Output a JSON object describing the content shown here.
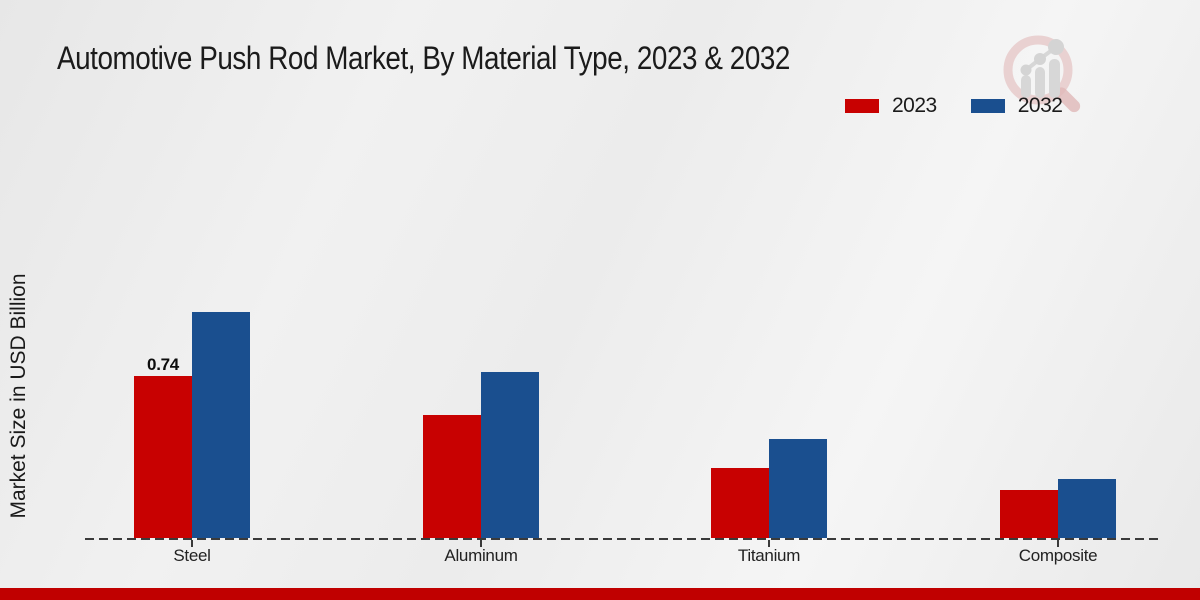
{
  "title": "Automotive Push Rod Market, By Material Type, 2023 & 2032",
  "y_axis_label": "Market Size in USD Billion",
  "colors": {
    "series_2023": "#c80101",
    "series_2032": "#1a4f8f",
    "bottom_band": "#c00000",
    "baseline": "#3a3a3a"
  },
  "legend": {
    "position": "top-right",
    "items": [
      {
        "label": "2023",
        "color": "#c80101"
      },
      {
        "label": "2032",
        "color": "#1a4f8f"
      }
    ]
  },
  "branding": {
    "logo_icon": "magnifier-bar-chart-logo"
  },
  "chart_data": {
    "type": "bar",
    "categories": [
      "Steel",
      "Aluminum",
      "Titanium",
      "Composite"
    ],
    "series": [
      {
        "name": "2023",
        "color": "#c80101",
        "values": [
          0.74,
          0.56,
          0.32,
          0.22
        ]
      },
      {
        "name": "2032",
        "color": "#1a4f8f",
        "values": [
          1.03,
          0.76,
          0.45,
          0.27
        ]
      }
    ],
    "bar_labels": [
      {
        "category": "Steel",
        "series": "2023",
        "text": "0.74"
      }
    ],
    "title": "Automotive Push Rod Market, By Material Type, 2023 & 2032",
    "xlabel": "",
    "ylabel": "Market Size in USD Billion",
    "ylim": [
      0,
      1.15
    ],
    "grid": false,
    "axis_ticks_visible": false,
    "baseline_style": "dashed",
    "legend_position": "top-right"
  }
}
